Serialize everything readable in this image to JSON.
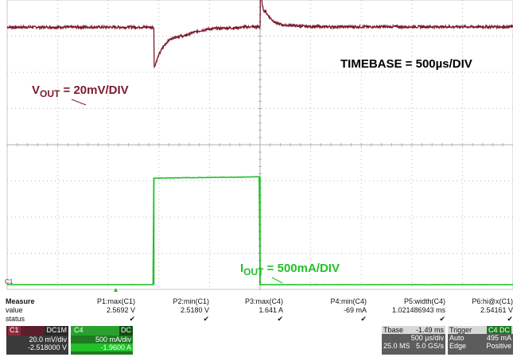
{
  "annotations": {
    "timebase": "TIMEBASE = 500µs/DIV",
    "vout_main": "V",
    "vout_sub": "OUT",
    "vout_rest": " = 20mV/DIV",
    "iout_main": "I",
    "iout_sub": "OUT",
    "iout_rest": " = 500mA/DIV"
  },
  "colors": {
    "vout": "#7b1b2e",
    "iout": "#22c02a",
    "grid": "#b8b8b8"
  },
  "measure": {
    "row_labels": [
      "Measure",
      "value",
      "status"
    ],
    "columns": [
      {
        "name": "P1:max(C1)",
        "value": "2.5692 V"
      },
      {
        "name": "P2:min(C1)",
        "value": "2.5180 V"
      },
      {
        "name": "P3:max(C4)",
        "value": "1.641 A"
      },
      {
        "name": "P4:min(C4)",
        "value": "-69 mA"
      },
      {
        "name": "P5:width(C4)",
        "value": "1.021486943 ms"
      },
      {
        "name": "P6:hi@x(C1)",
        "value": "2.54161 V"
      }
    ]
  },
  "channels": {
    "c1": {
      "tag": "C1",
      "coupling": "DC1M",
      "vdiv": "20.0 mV/div",
      "offset": "-2.518000 V"
    },
    "c4": {
      "tag": "C4",
      "coupling": "DC",
      "vdiv": "500 mA/div",
      "offset": "-1.9600 A"
    }
  },
  "timebase_box": {
    "label": "Tbase",
    "delay": "-1.49 ms",
    "tdiv": "500 µs/div",
    "samples": "25.0 MS",
    "rate": "5.0 GS/s"
  },
  "trigger_box": {
    "label": "Trigger",
    "channel": "C4 DC",
    "mode": "Auto",
    "level": "495 mA",
    "type": "Edge",
    "slope": "Positive"
  },
  "markers": {
    "c1_ground": "C1"
  },
  "chart_data": {
    "type": "line",
    "title": "",
    "xlabel": "",
    "ylabel": "",
    "grid": true,
    "divisions": {
      "x": 10,
      "y": 8
    },
    "series": [
      {
        "name": "VOUT",
        "unit": "V",
        "x_divisions": [
          0,
          2.9,
          2.9,
          3.5,
          4.5,
          5.0,
          5.0,
          5.1,
          5.6,
          6.5,
          10
        ],
        "y_volts": [
          2.541,
          2.541,
          2.518,
          2.536,
          2.5405,
          2.5412,
          2.5692,
          2.55,
          2.542,
          2.5412,
          2.5412
        ]
      },
      {
        "name": "IOUT",
        "unit": "A",
        "x_divisions": [
          0,
          2.9,
          2.9,
          5.0,
          5.0,
          10
        ],
        "y_amps": [
          0,
          0,
          1.6,
          1.62,
          0,
          0
        ]
      }
    ]
  }
}
